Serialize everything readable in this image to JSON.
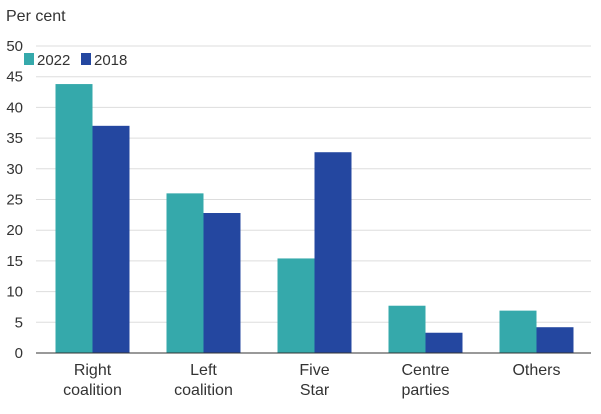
{
  "chart_data": {
    "type": "bar",
    "ylabel": "Per cent",
    "ylim": [
      0,
      50
    ],
    "ytick_step": 5,
    "grid": true,
    "legend_placement": "top-left",
    "categories": [
      [
        "Right",
        "coalition"
      ],
      [
        "Left",
        "coalition"
      ],
      [
        "Five",
        "Star"
      ],
      [
        "Centre",
        "parties"
      ],
      [
        "Others"
      ]
    ],
    "series": [
      {
        "name": "2022",
        "color": "#35a9ab",
        "values": [
          43.8,
          26.0,
          15.4,
          7.7,
          6.9
        ]
      },
      {
        "name": "2018",
        "color": "#2447a0",
        "values": [
          37.0,
          22.8,
          32.7,
          3.3,
          4.2
        ]
      }
    ]
  }
}
